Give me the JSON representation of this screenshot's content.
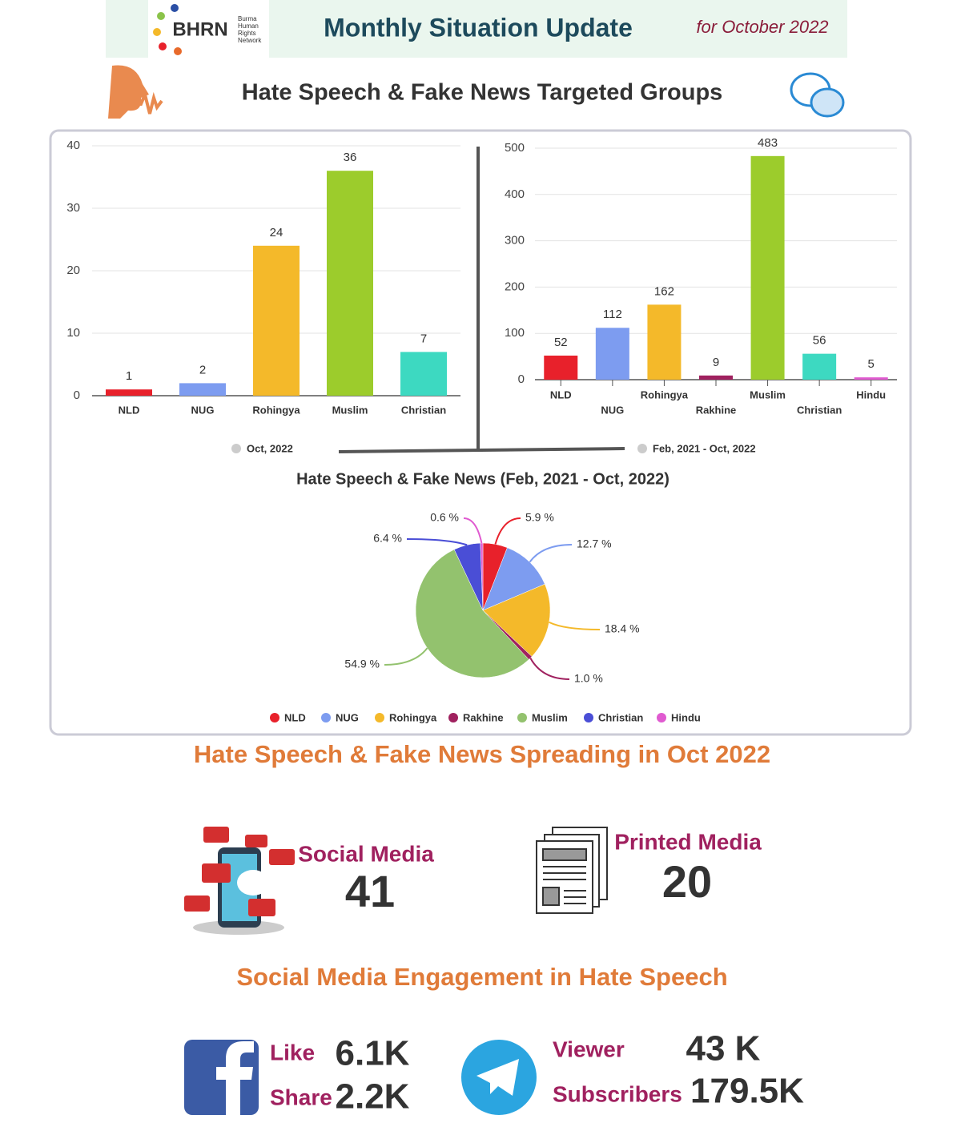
{
  "header": {
    "logo": "BHRN",
    "logo_subtitle": [
      "Burma",
      "Human",
      "Rights",
      "Network"
    ],
    "title": "Monthly Situation Update",
    "period": "for October 2022"
  },
  "section_title": "Hate Speech & Fake News Targeted Groups",
  "chart_data": [
    {
      "type": "bar",
      "categories": [
        "NLD",
        "NUG",
        "Rohingya",
        "Muslim",
        "Christian"
      ],
      "values": [
        1,
        2,
        24,
        36,
        7
      ],
      "colors": [
        "#e8212b",
        "#7d9cf0",
        "#f4b92a",
        "#9ccc2c",
        "#3dd9c1"
      ],
      "ylim": [
        0,
        40
      ],
      "yticks": [
        0,
        10,
        20,
        30,
        40
      ],
      "grid": true,
      "legend": "Oct, 2022",
      "legend_color": "#cccccc"
    },
    {
      "type": "bar",
      "categories": [
        "NLD",
        "NUG",
        "Rohingya",
        "Rakhine",
        "Muslim",
        "Christian",
        "Hindu"
      ],
      "values": [
        52,
        112,
        162,
        9,
        483,
        56,
        5
      ],
      "colors": [
        "#e8212b",
        "#7d9cf0",
        "#f4b92a",
        "#a0215f",
        "#9ccc2c",
        "#3dd9c1",
        "#e05ad0"
      ],
      "ylim": [
        0,
        500
      ],
      "yticks": [
        0,
        100,
        200,
        300,
        400,
        500
      ],
      "grid": true,
      "legend": "Feb, 2021 - Oct, 2022",
      "legend_color": "#cccccc"
    },
    {
      "type": "pie",
      "title": "Hate Speech & Fake News (Feb, 2021 - Oct, 2022)",
      "categories": [
        "NLD",
        "NUG",
        "Rohingya",
        "Rakhine",
        "Muslim",
        "Christian",
        "Hindu"
      ],
      "values": [
        5.9,
        12.7,
        18.4,
        1.0,
        54.9,
        6.4,
        0.6
      ],
      "value_labels": [
        "5.9 %",
        "12.7 %",
        "18.4 %",
        "1.0 %",
        "54.9 %",
        "6.4 %",
        "0.6 %"
      ],
      "colors": [
        "#e8212b",
        "#7d9cf0",
        "#f4b92a",
        "#a0215f",
        "#93c26e",
        "#4a4ed6",
        "#e05ad0"
      ],
      "legend_position": "bottom"
    }
  ],
  "spreading": {
    "title": "Hate Speech & Fake News Spreading in Oct 2022",
    "social_media": {
      "label": "Social Media",
      "value": 41
    },
    "printed_media": {
      "label": "Printed Media",
      "value": 20
    }
  },
  "engagement": {
    "title": "Social Media Engagement in Hate Speech",
    "facebook": {
      "like_label": "Like",
      "like": "6.1K",
      "share_label": "Share",
      "share": "2.2K"
    },
    "telegram": {
      "viewer_label": "Viewer",
      "viewer": "43 K",
      "subscribers_label": "Subscribers",
      "subscribers": "179.5K"
    }
  }
}
